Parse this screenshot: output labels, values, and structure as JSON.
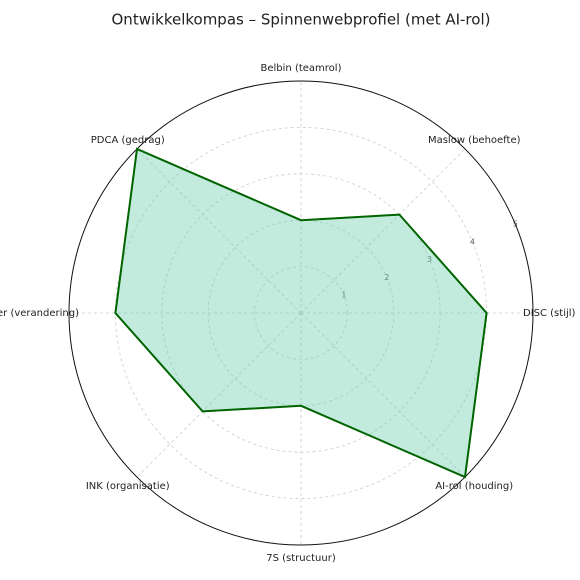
{
  "chart_data": {
    "type": "radar",
    "title": "Ontwikkelkompas – Spinnenwebprofiel (met AI-rol)",
    "categories": [
      "Belbin (teamrol)",
      "Maslow (behoefte)",
      "DISC (stijl)",
      "AI-rol (houding)",
      "7S (structuur)",
      "INK (organisatie)",
      "Kotter (verandering)",
      "PDCA (gedrag)"
    ],
    "series": [
      {
        "color": "#006400",
        "fill": "#66cdaa",
        "values": [
          2,
          3,
          4,
          5,
          2,
          3,
          4,
          5
        ]
      }
    ],
    "ylim": [
      0,
      5
    ],
    "yticks": [
      1,
      2,
      3,
      4,
      5
    ],
    "grid": true
  }
}
